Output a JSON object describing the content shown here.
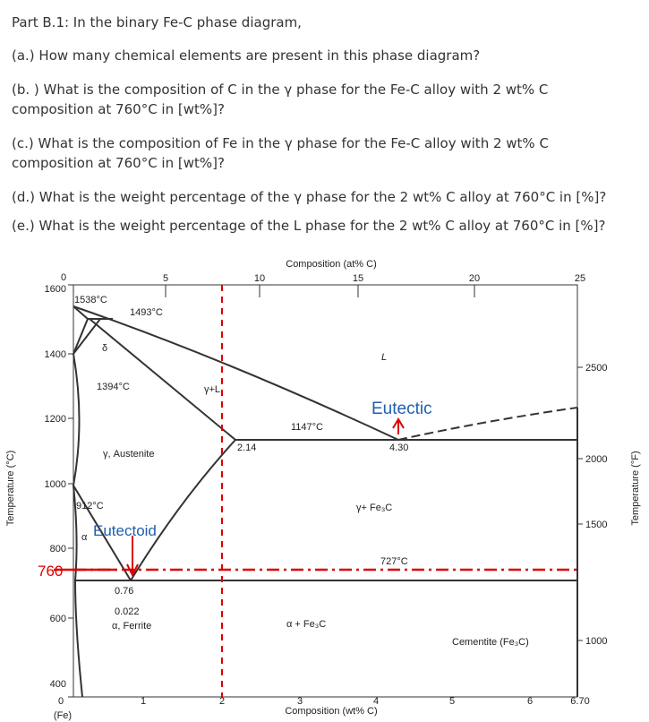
{
  "header": {
    "title": "Part B.1: In the binary Fe-C phase diagram,"
  },
  "questions": [
    "(a.) How many chemical elements are present in this phase diagram?",
    "(b. ) What is the composition of C in the γ phase for the Fe-C alloy with 2 wt% C composition at 760°C in [wt%]?",
    "(c.) What is the composition of Fe in the γ phase for the Fe-C alloy with 2 wt% C composition at 760°C in [wt%]?",
    "(d.) What is the weight percentage of the γ phase for the 2 wt% C alloy at 760°C in [%]?",
    "(e.) What is the weight percentage of the L phase for the 2 wt% C alloy at 760°C in [%]?"
  ],
  "diagram": {
    "top_axis": {
      "label": "Composition (at% C)",
      "ticks": [
        "0",
        "5",
        "10",
        "15",
        "20",
        "25"
      ]
    },
    "bottom_axis": {
      "label": "Composition (wt% C)",
      "ticks": [
        "0",
        "1",
        "2",
        "3",
        "4",
        "5",
        "6",
        "6.70"
      ],
      "origin_note": "(Fe)"
    },
    "left_axis": {
      "label": "Temperature (°C)",
      "ticks": [
        "1600",
        "1400",
        "1200",
        "1000",
        "800",
        "600",
        "400"
      ]
    },
    "right_axis": {
      "label": "Temperature (°F)",
      "ticks": [
        "2500",
        "2000",
        "1500",
        "1000"
      ]
    },
    "labels": [
      "1538°C",
      "1493°C",
      "δ",
      "L",
      "1394°C",
      "γ+L",
      "1147°C",
      "2.14",
      "4.30",
      "γ, Austenite",
      "912°C",
      "γ+ Fe₃C",
      "α",
      "727°C",
      "0.76",
      "0.022",
      "α, Ferrite",
      "α + Fe₃C",
      "Cementite (Fe₃C)"
    ],
    "annotations": {
      "eutectic": "Eutectic",
      "eutectoid": "Eutectoid",
      "temperature": "760"
    }
  }
}
